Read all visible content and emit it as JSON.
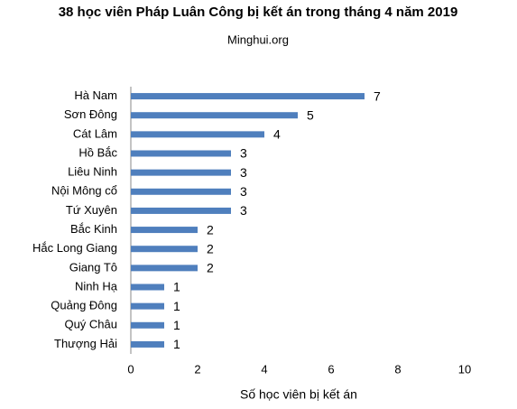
{
  "chart_data": {
    "type": "bar",
    "orientation": "horizontal",
    "title": "38 học viên Pháp Luân Công bị kết án trong tháng 4 năm 2019",
    "subtitle": "Minghui.org",
    "x_label": "Số học viên bị kết án",
    "categories": [
      "Hà Nam",
      "Sơn Đông",
      "Cát Lâm",
      "Hồ Bắc",
      "Liêu Ninh",
      "Nội Mông cổ",
      "Tứ Xuyên",
      "Bắc Kinh",
      "Hắc Long Giang",
      "Giang Tô",
      "Ninh Hạ",
      "Quảng Đông",
      "Quý Châu",
      "Thượng Hải"
    ],
    "values": [
      7,
      5,
      4,
      3,
      3,
      3,
      3,
      2,
      2,
      2,
      1,
      1,
      1,
      1
    ],
    "color": "#4f7fbd",
    "xlim": [
      0,
      10
    ],
    "xticks": [
      0,
      2,
      4,
      6,
      8,
      10
    ],
    "grid": false
  }
}
